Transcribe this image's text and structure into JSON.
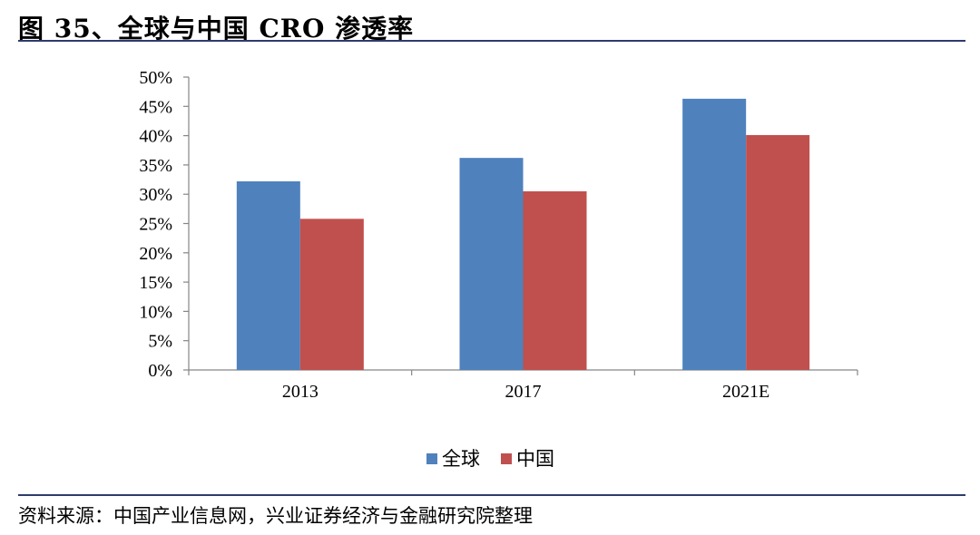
{
  "page": {
    "title": "图 35、全球与中国 CRO 渗透率",
    "source": "资料来源：中国产业信息网，兴业证券经济与金融研究院整理"
  },
  "chart_data": {
    "type": "bar",
    "categories": [
      "2013",
      "2017",
      "2021E"
    ],
    "series": [
      {
        "name": "全球",
        "values": [
          32.2,
          36.2,
          46.3
        ],
        "color": "#4f81bd"
      },
      {
        "name": "中国",
        "values": [
          25.8,
          30.5,
          40.1
        ],
        "color": "#c0504d"
      }
    ],
    "ylim": [
      0,
      50
    ],
    "yticks": [
      "0%",
      "5%",
      "10%",
      "15%",
      "20%",
      "25%",
      "30%",
      "35%",
      "40%",
      "45%",
      "50%"
    ],
    "legend_position": "bottom",
    "grid": false
  }
}
